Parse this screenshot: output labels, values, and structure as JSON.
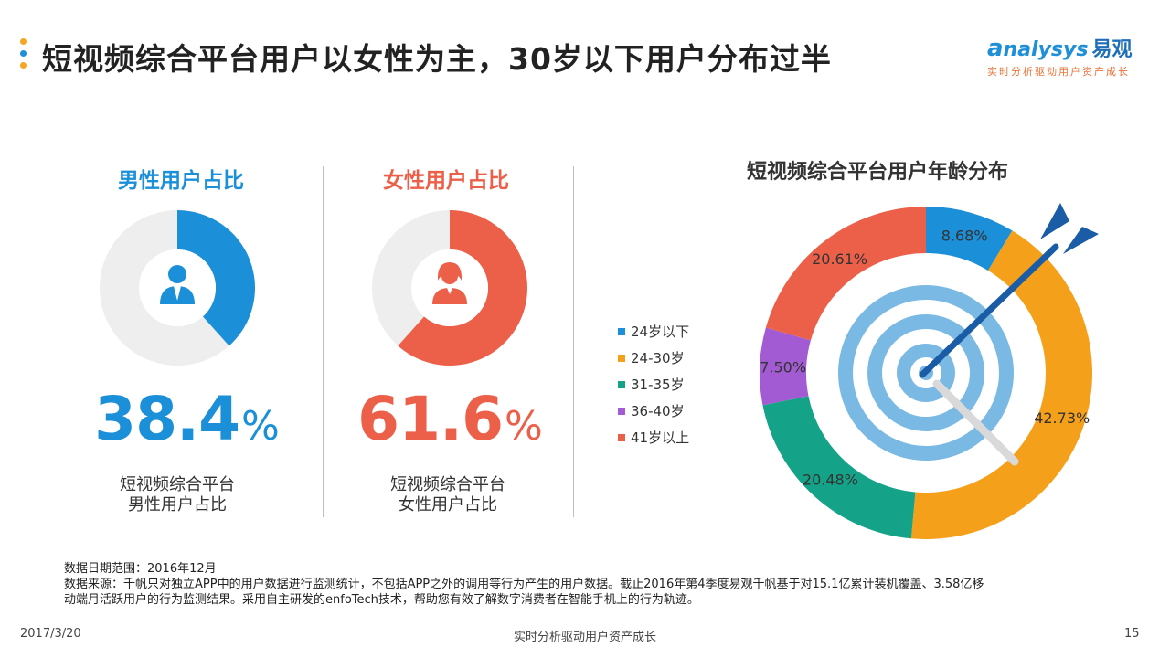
{
  "header": {
    "title": "短视频综合平台用户以女性为主，30岁以下用户分布过半",
    "dot_colors": [
      "#f5a623",
      "#1f8fd8",
      "#f5a623"
    ]
  },
  "logo": {
    "name": "nalysys",
    "name_cn": "易观",
    "tagline": "实时分析驱动用户资产成长"
  },
  "male": {
    "title": "男性用户占比",
    "value_text": "38.4",
    "percent_sign": "%",
    "caption_line1": "短视频综合平台",
    "caption_line2": "男性用户占比",
    "color": "#1b8fd8",
    "icon": "male-user-icon"
  },
  "female": {
    "title": "女性用户占比",
    "value_text": "61.6",
    "percent_sign": "%",
    "caption_line1": "短视频综合平台",
    "caption_line2": "女性用户占比",
    "color": "#ec6049",
    "icon": "female-user-icon"
  },
  "chart_data": [
    {
      "type": "pie",
      "title": "男性用户占比",
      "categories": [
        "男性"
      ],
      "values": [
        38.4
      ],
      "colors": [
        "#1b8fd8"
      ]
    },
    {
      "type": "pie",
      "title": "女性用户占比",
      "categories": [
        "女性"
      ],
      "values": [
        61.6
      ],
      "colors": [
        "#ec6049"
      ]
    },
    {
      "type": "pie",
      "title": "短视频综合平台用户年龄分布",
      "categories": [
        "24岁以下",
        "24-30岁",
        "31-35岁",
        "36-40岁",
        "41岁以上"
      ],
      "values": [
        8.68,
        42.73,
        20.48,
        7.5,
        20.61
      ],
      "labels": [
        "8.68%",
        "42.73%",
        "20.48%",
        "7.50%",
        "20.61%"
      ],
      "colors": [
        "#1b8fd8",
        "#f5a01a",
        "#14a388",
        "#a25bd2",
        "#ec6049"
      ],
      "legend_position": "left"
    }
  ],
  "footer": {
    "date_range": "数据日期范围：2016年12月",
    "source_line1": "数据来源：千帆只对独立APP中的用户数据进行监测统计，不包括APP之外的调用等行为产生的用户数据。截止2016年第4季度易观千帆基于对15.1亿累计装机覆盖、3.58亿移",
    "source_line2": "动端月活跃用户的行为监测结果。采用自主研发的enfoTech技术，帮助您有效了解数字消费者在智能手机上的行为轨迹。",
    "date": "2017/3/20",
    "tagline": "实时分析驱动用户资产成长",
    "page": "15"
  }
}
